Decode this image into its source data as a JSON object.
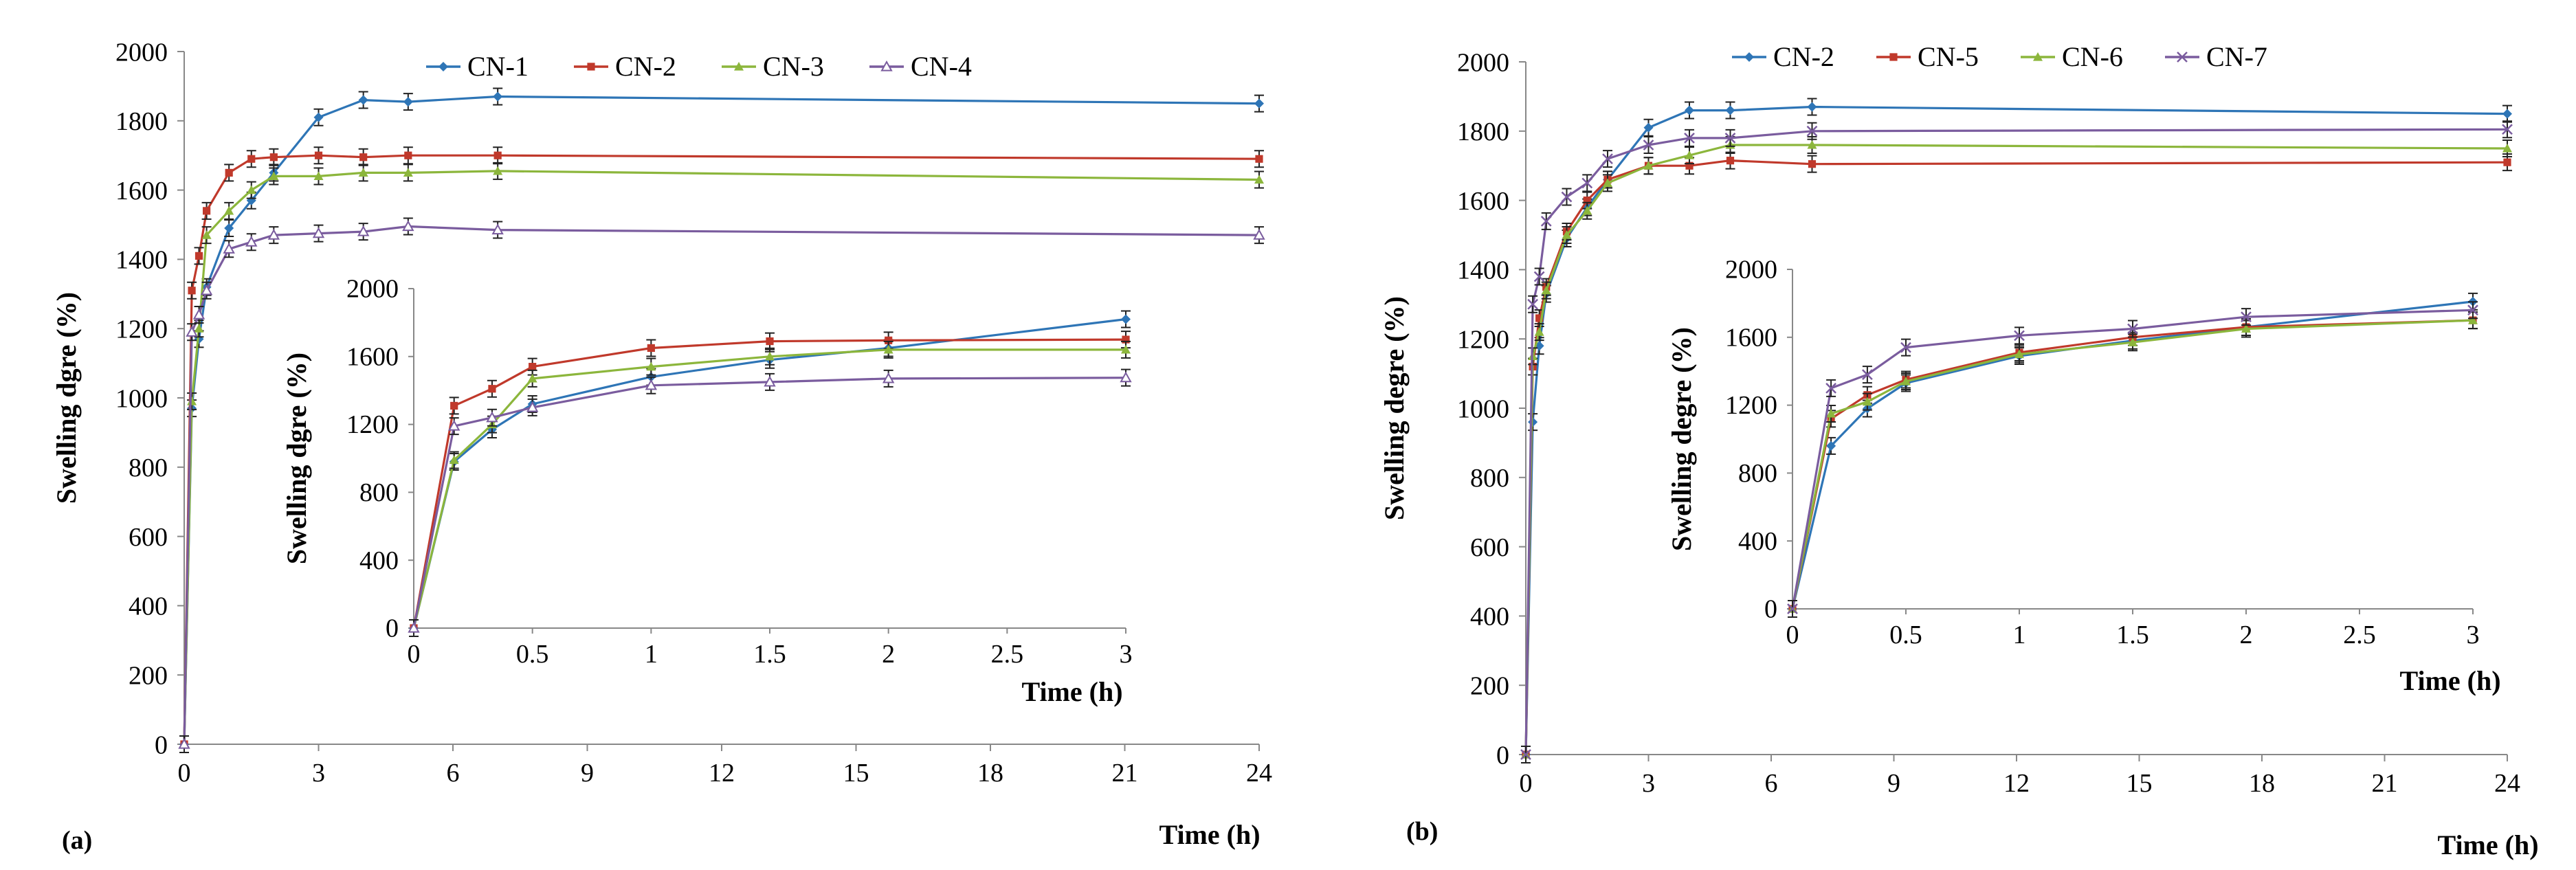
{
  "chart_data": [
    {
      "id": "a-main",
      "type": "line",
      "title": "",
      "panel_label": "(a)",
      "xlabel": "Time (h)",
      "ylabel": "Swelling dgre (%)",
      "xlim": [
        0,
        24
      ],
      "ylim": [
        0,
        2000
      ],
      "xticks": [
        0,
        3,
        6,
        9,
        12,
        15,
        18,
        21,
        24
      ],
      "yticks": [
        0,
        200,
        400,
        600,
        800,
        1000,
        1200,
        1400,
        1600,
        1800,
        2000
      ],
      "legend_position": "top-center",
      "grid": false,
      "error_bars": true,
      "series": [
        {
          "name": "CN-1",
          "color": "#2e75b6",
          "marker": "diamond",
          "x": [
            0,
            0.17,
            0.33,
            0.5,
            1,
            1.5,
            2,
            3,
            4,
            5,
            7,
            24
          ],
          "y": [
            0,
            970,
            1170,
            1320,
            1490,
            1570,
            1650,
            1810,
            1860,
            1855,
            1870,
            1850
          ]
        },
        {
          "name": "CN-2",
          "color": "#c0392b",
          "marker": "square",
          "x": [
            0,
            0.17,
            0.33,
            0.5,
            1,
            1.5,
            2,
            3,
            4,
            5,
            7,
            24
          ],
          "y": [
            0,
            1310,
            1410,
            1540,
            1650,
            1690,
            1695,
            1700,
            1695,
            1700,
            1700,
            1690
          ]
        },
        {
          "name": "CN-3",
          "color": "#8cb63c",
          "marker": "triangle",
          "x": [
            0,
            0.17,
            0.33,
            0.5,
            1,
            1.5,
            2,
            3,
            4,
            5,
            7,
            24
          ],
          "y": [
            0,
            990,
            1200,
            1470,
            1540,
            1600,
            1640,
            1640,
            1650,
            1650,
            1655,
            1630
          ]
        },
        {
          "name": "CN-4",
          "color": "#7a5c9e",
          "marker": "triangle-open",
          "x": [
            0,
            0.17,
            0.33,
            0.5,
            1,
            1.5,
            2,
            3,
            4,
            5,
            7,
            24
          ],
          "y": [
            0,
            1190,
            1240,
            1310,
            1430,
            1450,
            1470,
            1475,
            1480,
            1495,
            1485,
            1470
          ]
        }
      ]
    },
    {
      "id": "a-inset",
      "type": "line",
      "title": "",
      "xlabel": "Time (h)",
      "ylabel": "Swelling dgre (%)",
      "xlim": [
        0,
        3
      ],
      "ylim": [
        0,
        2000
      ],
      "xticks": [
        0,
        0.5,
        1,
        1.5,
        2,
        2.5,
        3
      ],
      "yticks": [
        0,
        400,
        800,
        1200,
        1600,
        2000
      ],
      "grid": false,
      "error_bars": true,
      "series": [
        {
          "name": "CN-1",
          "color": "#2e75b6",
          "marker": "diamond",
          "x": [
            0,
            0.17,
            0.33,
            0.5,
            1,
            1.5,
            2,
            3
          ],
          "y": [
            0,
            980,
            1170,
            1320,
            1480,
            1580,
            1650,
            1820
          ]
        },
        {
          "name": "CN-2",
          "color": "#c0392b",
          "marker": "square",
          "x": [
            0,
            0.17,
            0.33,
            0.5,
            1,
            1.5,
            2,
            3
          ],
          "y": [
            0,
            1310,
            1410,
            1540,
            1650,
            1690,
            1695,
            1700
          ]
        },
        {
          "name": "CN-3",
          "color": "#8cb63c",
          "marker": "triangle",
          "x": [
            0,
            0.17,
            0.33,
            0.5,
            1,
            1.5,
            2,
            3
          ],
          "y": [
            0,
            990,
            1200,
            1470,
            1540,
            1600,
            1640,
            1640
          ]
        },
        {
          "name": "CN-4",
          "color": "#7a5c9e",
          "marker": "triangle-open",
          "x": [
            0,
            0.17,
            0.33,
            0.5,
            1,
            1.5,
            2,
            3
          ],
          "y": [
            0,
            1190,
            1240,
            1300,
            1430,
            1450,
            1470,
            1475
          ]
        }
      ]
    },
    {
      "id": "b-main",
      "type": "line",
      "title": "",
      "panel_label": "(b)",
      "xlabel": "Time (h)",
      "ylabel": "Swelling degre (%)",
      "xlim": [
        0,
        24
      ],
      "ylim": [
        0,
        2000
      ],
      "xticks": [
        0,
        3,
        6,
        9,
        12,
        15,
        18,
        21,
        24
      ],
      "yticks": [
        0,
        200,
        400,
        600,
        800,
        1000,
        1200,
        1400,
        1600,
        1800,
        2000
      ],
      "legend_position": "top-center",
      "grid": false,
      "error_bars": true,
      "series": [
        {
          "name": "CN-2",
          "color": "#2e75b6",
          "marker": "diamond",
          "x": [
            0,
            0.17,
            0.33,
            0.5,
            1,
            1.5,
            2,
            3,
            4,
            5,
            7,
            24
          ],
          "y": [
            0,
            960,
            1180,
            1330,
            1490,
            1580,
            1660,
            1810,
            1860,
            1860,
            1870,
            1850
          ]
        },
        {
          "name": "CN-5",
          "color": "#c0392b",
          "marker": "square",
          "x": [
            0,
            0.17,
            0.33,
            0.5,
            1,
            1.5,
            2,
            3,
            4,
            5,
            7,
            24
          ],
          "y": [
            0,
            1120,
            1260,
            1350,
            1510,
            1600,
            1660,
            1700,
            1700,
            1715,
            1705,
            1710
          ]
        },
        {
          "name": "CN-6",
          "color": "#8cb63c",
          "marker": "triangle",
          "x": [
            0,
            0.17,
            0.33,
            0.5,
            1,
            1.5,
            2,
            3,
            4,
            5,
            7,
            24
          ],
          "y": [
            0,
            1150,
            1220,
            1340,
            1500,
            1570,
            1650,
            1700,
            1730,
            1760,
            1760,
            1750
          ]
        },
        {
          "name": "CN-7",
          "color": "#7a5c9e",
          "marker": "x",
          "x": [
            0,
            0.17,
            0.33,
            0.5,
            1,
            1.5,
            2,
            3,
            4,
            5,
            7,
            24
          ],
          "y": [
            0,
            1300,
            1380,
            1540,
            1610,
            1650,
            1720,
            1760,
            1780,
            1780,
            1800,
            1805
          ]
        }
      ]
    },
    {
      "id": "b-inset",
      "type": "line",
      "title": "",
      "xlabel": "Time (h)",
      "ylabel": "Swelling degre (%)",
      "xlim": [
        0,
        3
      ],
      "ylim": [
        0,
        2000
      ],
      "xticks": [
        0,
        0.5,
        1,
        1.5,
        2,
        2.5,
        3
      ],
      "yticks": [
        0,
        400,
        800,
        1200,
        1600,
        2000
      ],
      "grid": false,
      "error_bars": true,
      "series": [
        {
          "name": "CN-2",
          "color": "#2e75b6",
          "marker": "diamond",
          "x": [
            0,
            0.17,
            0.33,
            0.5,
            1,
            1.5,
            2,
            3
          ],
          "y": [
            0,
            960,
            1180,
            1330,
            1490,
            1580,
            1660,
            1810
          ]
        },
        {
          "name": "CN-5",
          "color": "#c0392b",
          "marker": "square",
          "x": [
            0,
            0.17,
            0.33,
            0.5,
            1,
            1.5,
            2,
            3
          ],
          "y": [
            0,
            1120,
            1260,
            1350,
            1510,
            1600,
            1660,
            1700
          ]
        },
        {
          "name": "CN-6",
          "color": "#8cb63c",
          "marker": "triangle",
          "x": [
            0,
            0.17,
            0.33,
            0.5,
            1,
            1.5,
            2,
            3
          ],
          "y": [
            0,
            1150,
            1220,
            1340,
            1500,
            1570,
            1650,
            1700
          ]
        },
        {
          "name": "CN-7",
          "color": "#7a5c9e",
          "marker": "x",
          "x": [
            0,
            0.17,
            0.33,
            0.5,
            1,
            1.5,
            2,
            3
          ],
          "y": [
            0,
            1300,
            1380,
            1540,
            1610,
            1650,
            1720,
            1760
          ]
        }
      ]
    }
  ]
}
